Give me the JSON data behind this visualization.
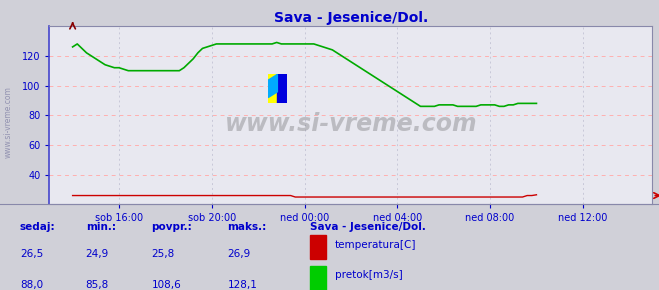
{
  "title": "Sava - Jesenice/Dol.",
  "bg_color": "#d0d0d8",
  "plot_bg_color": "#e8e8f0",
  "grid_color_h": "#ffb0b0",
  "grid_color_v": "#c8c8d8",
  "title_color": "#0000cc",
  "axis_label_color": "#0000cc",
  "spine_color": "#8888aa",
  "x_tick_labels": [
    "sob 16:00",
    "sob 20:00",
    "ned 00:00",
    "ned 04:00",
    "ned 08:00",
    "ned 12:00"
  ],
  "ylim": [
    20,
    140
  ],
  "yticks": [
    40,
    60,
    80,
    100,
    120
  ],
  "watermark": "www.si-vreme.com",
  "legend_title": "Sava - Jesenice/Dol.",
  "legend_items": [
    {
      "label": "temperatura[C]",
      "color": "#cc0000"
    },
    {
      "label": "pretok[m3/s]",
      "color": "#00cc00"
    }
  ],
  "stats_headers": [
    "sedaj:",
    "min.:",
    "povpr.:",
    "maks.:"
  ],
  "stats_temp": [
    "26,5",
    "24,9",
    "25,8",
    "26,9"
  ],
  "stats_flow": [
    "88,0",
    "85,8",
    "108,6",
    "128,1"
  ],
  "temp_color": "#cc0000",
  "flow_color": "#00aa00",
  "flow_data_x": [
    0,
    12,
    24,
    36,
    48,
    60,
    72,
    84,
    96,
    108,
    120,
    132,
    144,
    156,
    168,
    180,
    192,
    204,
    216,
    228,
    240,
    252,
    264,
    276,
    288,
    300,
    312,
    324,
    336,
    348,
    360,
    372,
    384,
    396,
    408,
    420,
    432,
    444,
    456,
    468,
    480,
    492,
    504,
    516,
    528,
    540,
    552,
    564,
    576,
    588,
    600,
    612,
    624,
    636,
    648,
    660,
    672,
    684,
    696,
    708,
    720,
    732,
    744,
    756,
    768,
    780,
    792,
    804,
    816,
    828,
    840,
    852,
    864,
    876,
    888,
    900,
    912,
    924,
    936,
    948,
    960,
    972,
    984,
    996,
    1008,
    1020,
    1032,
    1044,
    1056,
    1068,
    1080,
    1092,
    1104,
    1116,
    1128,
    1140,
    1152,
    1164,
    1176,
    1188,
    1200
  ],
  "flow_data_y": [
    126,
    128,
    125,
    122,
    120,
    118,
    116,
    114,
    113,
    112,
    112,
    111,
    110,
    110,
    110,
    110,
    110,
    110,
    110,
    110,
    110,
    110,
    110,
    110,
    112,
    115,
    118,
    122,
    125,
    126,
    127,
    128,
    128,
    128,
    128,
    128,
    128,
    128,
    128,
    128,
    128,
    128,
    128,
    128,
    129,
    128,
    128,
    128,
    128,
    128,
    128,
    128,
    128,
    127,
    126,
    125,
    124,
    122,
    120,
    118,
    116,
    114,
    112,
    110,
    108,
    106,
    104,
    102,
    100,
    98,
    96,
    94,
    92,
    90,
    88,
    86,
    86,
    86,
    86,
    87,
    87,
    87,
    87,
    86,
    86,
    86,
    86,
    86,
    87,
    87,
    87,
    87,
    86,
    86,
    87,
    87,
    88,
    88,
    88,
    88,
    88
  ],
  "temp_data_y": [
    26,
    26,
    26,
    26,
    26,
    26,
    26,
    26,
    26,
    26,
    26,
    26,
    26,
    26,
    26,
    26,
    26,
    26,
    26,
    26,
    26,
    26,
    26,
    26,
    26,
    26,
    26,
    26,
    26,
    26,
    26,
    26,
    26,
    26,
    26,
    26,
    26,
    26,
    26,
    26,
    26,
    26,
    26,
    26,
    26,
    26,
    26,
    26,
    25,
    25,
    25,
    25,
    25,
    25,
    25,
    25,
    25,
    25,
    25,
    25,
    25,
    25,
    25,
    25,
    25,
    25,
    25,
    25,
    25,
    25,
    25,
    25,
    25,
    25,
    25,
    25,
    25,
    25,
    25,
    25,
    25,
    25,
    25,
    25,
    25,
    25,
    25,
    25,
    25,
    25,
    25,
    25,
    25,
    25,
    25,
    25,
    25,
    25,
    26,
    26,
    26.5
  ]
}
